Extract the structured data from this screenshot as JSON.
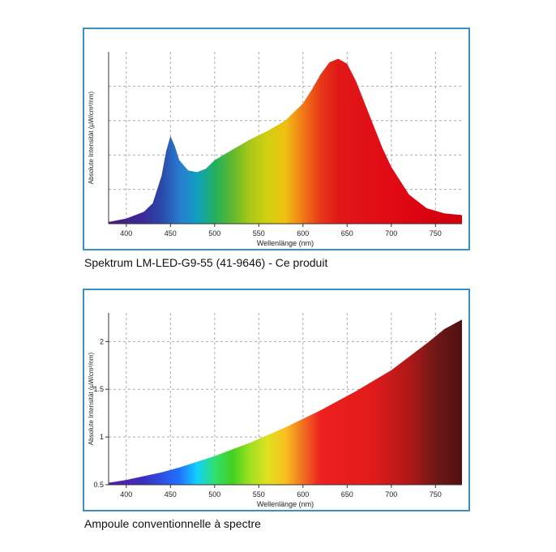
{
  "chart_data": [
    {
      "type": "area",
      "caption": "Spektrum LM-LED-G9-55 (41-9646) - Ce produit",
      "xlabel": "Wellenlänge (nm)",
      "ylabel": "Absolute Intensität (µW/cm²/nm)",
      "xlim": [
        380,
        780
      ],
      "xticks": [
        400,
        450,
        500,
        550,
        600,
        650,
        700,
        750
      ],
      "ylim": [
        0,
        1
      ],
      "yticks": [],
      "grid": true,
      "fill": "spectral-gradient",
      "x": [
        380,
        400,
        420,
        430,
        440,
        445,
        450,
        455,
        460,
        470,
        480,
        490,
        500,
        520,
        540,
        560,
        580,
        600,
        610,
        620,
        630,
        640,
        650,
        660,
        670,
        680,
        690,
        700,
        720,
        740,
        760,
        780
      ],
      "y": [
        0.01,
        0.03,
        0.07,
        0.12,
        0.28,
        0.42,
        0.51,
        0.45,
        0.37,
        0.31,
        0.3,
        0.32,
        0.37,
        0.43,
        0.49,
        0.54,
        0.6,
        0.7,
        0.78,
        0.87,
        0.94,
        0.96,
        0.93,
        0.83,
        0.7,
        0.57,
        0.44,
        0.33,
        0.17,
        0.09,
        0.06,
        0.05
      ]
    },
    {
      "type": "area",
      "caption": "Ampoule conventionnelle à spectre",
      "xlabel": "Wellenlänge (nm)",
      "ylabel": "Absolute Intensität (µW/cm²/nm)",
      "xlim": [
        380,
        780
      ],
      "xticks": [
        400,
        450,
        500,
        550,
        600,
        650,
        700,
        750
      ],
      "ylim": [
        0.5,
        2.3
      ],
      "yticks": [
        0.5,
        1,
        1.5,
        2
      ],
      "ytick_labels": [
        "0.5",
        "1",
        "1.5",
        "2"
      ],
      "grid": true,
      "fill": "spectral-gradient",
      "x": [
        380,
        400,
        420,
        440,
        460,
        480,
        500,
        520,
        540,
        560,
        580,
        600,
        620,
        640,
        660,
        680,
        700,
        720,
        740,
        760,
        780
      ],
      "y": [
        0.52,
        0.55,
        0.59,
        0.63,
        0.68,
        0.74,
        0.8,
        0.87,
        0.94,
        1.02,
        1.1,
        1.19,
        1.28,
        1.38,
        1.48,
        1.59,
        1.7,
        1.84,
        1.98,
        2.13,
        2.23
      ]
    }
  ]
}
